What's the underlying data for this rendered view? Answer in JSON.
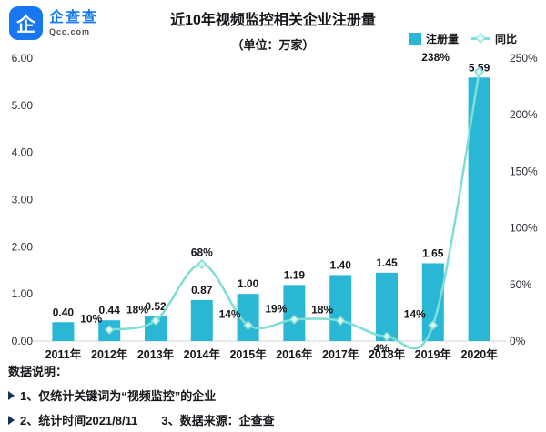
{
  "brand": {
    "name": "企查查",
    "domain": "Qcc.com",
    "logo_char": "企"
  },
  "title": "近10年视频监控相关企业注册量",
  "subtitle": "（单位：万家）",
  "legend": [
    {
      "label": "注册量",
      "marker": "bar-square"
    },
    {
      "label": "同比",
      "marker": "line-diamond"
    }
  ],
  "colors": {
    "bar": "#29b7d5",
    "line": "#7eded3",
    "brand_blue": "#1677f0",
    "text": "#15161a",
    "bullet_navy": "#16325c"
  },
  "chart_data": {
    "type": "bar+line",
    "title": "近10年视频监控相关企业注册量",
    "unit": "万家",
    "categories": [
      "2011年",
      "2012年",
      "2013年",
      "2014年",
      "2015年",
      "2016年",
      "2017年",
      "2018年",
      "2019年",
      "2020年"
    ],
    "series": [
      {
        "name": "注册量",
        "type": "bar",
        "axis": "left",
        "values": [
          0.4,
          0.44,
          0.52,
          0.87,
          1.0,
          1.19,
          1.4,
          1.45,
          1.65,
          5.59
        ],
        "labels": [
          "0.40",
          "0.44",
          "0.52",
          "0.87",
          "1.00",
          "1.19",
          "1.40",
          "1.45",
          "1.65",
          "5.59"
        ]
      },
      {
        "name": "同比",
        "type": "line",
        "axis": "right",
        "start_index": 1,
        "values": [
          10,
          18,
          68,
          14,
          19,
          18,
          4,
          14,
          238
        ],
        "labels": [
          "10%",
          "18%",
          "68%",
          "14%",
          "19%",
          "18%",
          "4%",
          "14%",
          "238%"
        ],
        "label_positions": [
          "above-left",
          "above-left",
          "above",
          "above-left",
          "above-left",
          "above-left",
          "below",
          "above-left",
          "left"
        ]
      }
    ],
    "left_axis": {
      "min": 0,
      "max": 6,
      "ticks": [
        "6.00",
        "5.00",
        "4.00",
        "3.00",
        "2.00",
        "1.00",
        "0.00"
      ]
    },
    "right_axis": {
      "min": 0,
      "max": 250,
      "ticks": [
        "250%",
        "200%",
        "150%",
        "100%",
        "50%",
        "0%"
      ]
    },
    "grid": false,
    "legend_position": "top-right"
  },
  "notes": {
    "heading": "数据说明：",
    "line1": "1、仅统计关键词为“视频监控”的企业",
    "line2a": "2、统计时间2021/8/11",
    "line2b": "3、数据来源：企查查"
  }
}
